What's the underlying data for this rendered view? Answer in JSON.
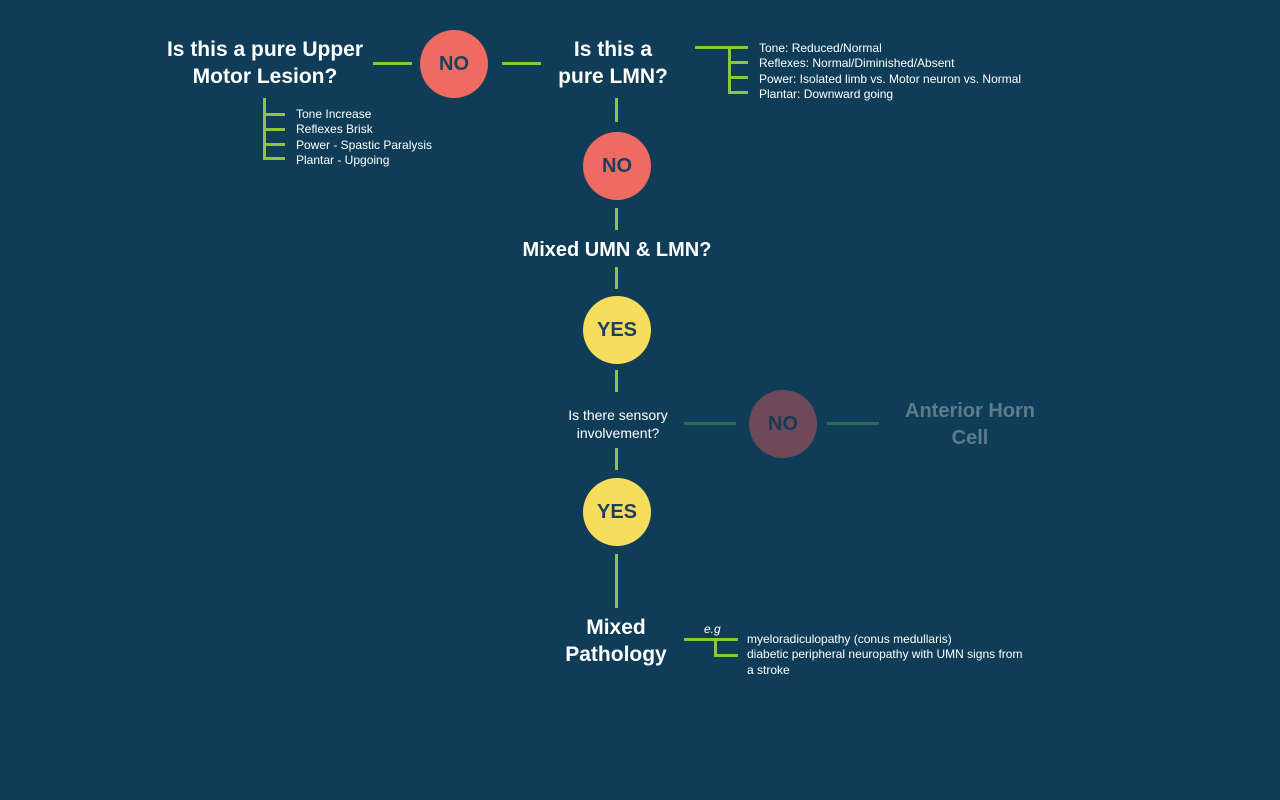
{
  "nodes": {
    "umn_question": "Is this a pure Upper Motor Lesion?",
    "lmn_question_line1": "Is this a",
    "lmn_question_line2": "pure LMN?",
    "mixed_question": "Mixed UMN & LMN?",
    "sensory_question_line1": "Is there sensory",
    "sensory_question_line2": "involvement?",
    "anterior_horn_line1": "Anterior Horn",
    "anterior_horn_line2": "Cell",
    "mixed_pathology_line1": "Mixed",
    "mixed_pathology_line2": "Pathology"
  },
  "umn_question_lines": [
    "Is this a pure Upper",
    "Motor Lesion?"
  ],
  "answers": {
    "no_1": "NO",
    "no_2": "NO",
    "yes_1": "YES",
    "no_3": "NO",
    "yes_2": "YES"
  },
  "umn_features": [
    "Tone Increase",
    "Reflexes Brisk",
    "Power - Spastic Paralysis",
    "Plantar - Upgoing"
  ],
  "lmn_features": [
    "Tone: Reduced/Normal",
    "Reflexes: Normal/Diminished/Absent",
    "Power: Isolated limb vs. Motor neuron vs. Normal",
    "Plantar: Downward going"
  ],
  "examples_label": "e.g",
  "examples": [
    "myeloradiculopathy (conus medullaris)",
    "diabetic peripheral neuropathy with UMN signs from",
    "a stroke"
  ],
  "colors": {
    "background": "#0f3d58",
    "no": "#ee6b62",
    "yes": "#f7dd5c",
    "connector": "#8cc63f",
    "muted_no": "#6e4a59",
    "muted_text": "#5c7b8c"
  }
}
